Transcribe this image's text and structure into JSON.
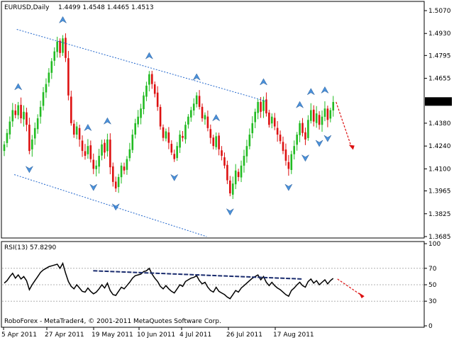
{
  "header": {
    "symbol": "EURUSD,Daily",
    "ohlc": "1.4499 1.4548 1.4465 1.4513"
  },
  "indicator": {
    "label": "RSI(13) 57.8290"
  },
  "footer": {
    "copyright": "RoboForex - MetaTrader4, © 2001-2011 MetaQuotes Software Corp."
  },
  "colors": {
    "bull": "#22bb22",
    "bear": "#dd1111",
    "channel": "#2266cc",
    "rsi_line": "#000000",
    "rsi_trend": "#1a2c6e",
    "forecast": "#dd1111",
    "fractal": "#4a90d9",
    "current_price_bg": "#000000"
  },
  "chart_data": [
    {
      "type": "candlestick",
      "title": "EURUSD,Daily",
      "y_ticks": [
        "1.5070",
        "1.4930",
        "1.4795",
        "1.4655",
        "1.4513",
        "1.4380",
        "1.4240",
        "1.4100",
        "1.3965",
        "1.3825",
        "1.3685"
      ],
      "ylim": [
        1.3685,
        1.507
      ],
      "current_price": "1.4513",
      "x_ticks": [
        "5 Apr 2011",
        "27 Apr 2011",
        "19 May 2011",
        "10 Jun 2011",
        "4 Jul 2011",
        "26 Jul 2011",
        "17 Aug 2011"
      ],
      "closes": [
        1.425,
        1.432,
        1.439,
        1.446,
        1.443,
        1.449,
        1.441,
        1.445,
        1.437,
        1.421,
        1.428,
        1.435,
        1.441,
        1.448,
        1.457,
        1.462,
        1.469,
        1.476,
        1.482,
        1.488,
        1.481,
        1.49,
        1.478,
        1.455,
        1.438,
        1.431,
        1.436,
        1.428,
        1.421,
        1.418,
        1.424,
        1.416,
        1.41,
        1.412,
        1.418,
        1.425,
        1.42,
        1.428,
        1.411,
        1.402,
        1.398,
        1.405,
        1.412,
        1.409,
        1.416,
        1.422,
        1.431,
        1.438,
        1.442,
        1.447,
        1.455,
        1.461,
        1.468,
        1.462,
        1.456,
        1.448,
        1.436,
        1.429,
        1.433,
        1.426,
        1.42,
        1.416,
        1.424,
        1.431,
        1.429,
        1.437,
        1.442,
        1.446,
        1.45,
        1.455,
        1.448,
        1.441,
        1.443,
        1.435,
        1.429,
        1.424,
        1.43,
        1.422,
        1.418,
        1.412,
        1.403,
        1.395,
        1.401,
        1.409,
        1.405,
        1.412,
        1.418,
        1.424,
        1.431,
        1.438,
        1.445,
        1.451,
        1.445,
        1.452,
        1.444,
        1.437,
        1.442,
        1.436,
        1.431,
        1.427,
        1.421,
        1.415,
        1.41,
        1.419,
        1.424,
        1.431,
        1.438,
        1.432,
        1.428,
        1.44,
        1.446,
        1.439,
        1.444,
        1.437,
        1.442,
        1.447,
        1.44,
        1.446,
        1.451
      ],
      "channel_upper": [
        [
          4.5,
          1.4955
        ],
        [
          94.3,
          1.4513
        ]
      ],
      "channel_lower": [
        [
          3.6,
          1.4065
        ],
        [
          72.6,
          1.3685
        ]
      ],
      "forecast_arrow": "down"
    },
    {
      "type": "line",
      "title": "RSI(13) 57.8290",
      "y_ticks": [
        "100",
        "70",
        "50",
        "30",
        "0"
      ],
      "ylim": [
        0,
        100
      ],
      "levels": [
        70,
        50,
        30
      ],
      "values": [
        52,
        55,
        60,
        64,
        58,
        62,
        57,
        60,
        55,
        44,
        50,
        55,
        60,
        65,
        68,
        70,
        72,
        73,
        74,
        75,
        70,
        76,
        64,
        54,
        48,
        45,
        50,
        46,
        42,
        41,
        46,
        42,
        39,
        41,
        45,
        50,
        46,
        52,
        43,
        38,
        37,
        42,
        47,
        45,
        49,
        53,
        58,
        61,
        62,
        63,
        66,
        67,
        70,
        63,
        58,
        54,
        48,
        45,
        49,
        45,
        42,
        40,
        45,
        50,
        48,
        54,
        56,
        58,
        59,
        61,
        55,
        51,
        53,
        47,
        43,
        41,
        47,
        42,
        40,
        38,
        35,
        33,
        38,
        43,
        41,
        46,
        49,
        52,
        55,
        58,
        60,
        62,
        56,
        60,
        53,
        49,
        53,
        49,
        46,
        44,
        41,
        38,
        36,
        43,
        46,
        50,
        53,
        49,
        47,
        54,
        57,
        52,
        55,
        50,
        53,
        56,
        51,
        55,
        57.8
      ],
      "trendline": [
        [
          31.9,
          67
        ],
        [
          106.8,
          57
        ]
      ]
    }
  ]
}
